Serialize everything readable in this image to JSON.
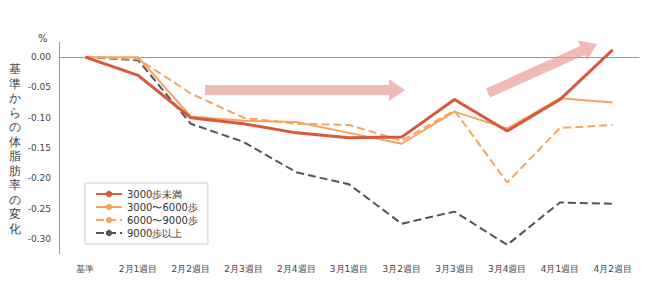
{
  "chart_data": {
    "type": "line",
    "y_label": "基準からの体脂肪率の変化",
    "y_unit": "%",
    "categories": [
      "基準",
      "2月1週目",
      "2月2週目",
      "2月3週目",
      "2月4週目",
      "3月1週目",
      "3月2週目",
      "3月3週目",
      "3月4週目",
      "4月1週目",
      "4月2週目"
    ],
    "series": [
      {
        "name": "3000歩未満",
        "color": "#d9573b",
        "line_style": "solid",
        "values": [
          0,
          -0.03,
          -0.1,
          -0.11,
          -0.125,
          -0.133,
          -0.132,
          -0.07,
          -0.122,
          -0.07,
          0.012
        ]
      },
      {
        "name": "3000〜6000歩",
        "color": "#f5a55e",
        "line_style": "solid",
        "values": [
          0,
          0,
          -0.098,
          -0.105,
          -0.107,
          -0.125,
          -0.143,
          -0.09,
          -0.118,
          -0.068,
          -0.075
        ]
      },
      {
        "name": "6000〜9000歩",
        "color": "#f5a55e",
        "line_style": "dashed",
        "values": [
          0,
          -0.003,
          -0.06,
          -0.1,
          -0.11,
          -0.112,
          -0.138,
          -0.088,
          -0.207,
          -0.117,
          -0.112
        ]
      },
      {
        "name": "9000歩以上",
        "color": "#555555",
        "line_style": "dashed",
        "values": [
          0,
          -0.005,
          -0.11,
          -0.14,
          -0.19,
          -0.21,
          -0.275,
          -0.255,
          -0.31,
          -0.24,
          -0.242
        ]
      }
    ],
    "ylim": [
      -0.325,
      0.025
    ],
    "yticks": [
      {
        "value": -0.3,
        "label": "-0.30"
      },
      {
        "value": -0.25,
        "label": "-0.25"
      },
      {
        "value": -0.2,
        "label": "-0.20"
      },
      {
        "value": -0.15,
        "label": "-0.15"
      },
      {
        "value": -0.1,
        "label": "-0.10"
      },
      {
        "value": -0.05,
        "label": "-0.05"
      },
      {
        "value": 0,
        "label": "0.00"
      }
    ],
    "grid": false,
    "legend": "lower left"
  }
}
